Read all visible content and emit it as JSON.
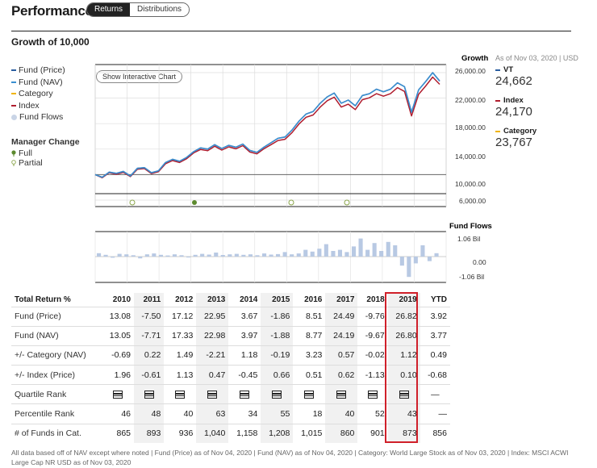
{
  "header": {
    "title": "Performance",
    "tabs": [
      {
        "label": "Returns",
        "active": true
      },
      {
        "label": "Distributions",
        "active": false
      }
    ]
  },
  "growth": {
    "title": "Growth of 10,000",
    "show_chart_button": "Show Interactive Chart",
    "growth_label": "Growth",
    "fund_flows_label": "Fund Flows",
    "legend": [
      {
        "label": "Fund (Price)",
        "color": "#2a5d9f",
        "shape": "line"
      },
      {
        "label": "Fund (NAV)",
        "color": "#3a8fd0",
        "shape": "line"
      },
      {
        "label": "Category",
        "color": "#f0b400",
        "shape": "line"
      },
      {
        "label": "Index",
        "color": "#b01d2e",
        "shape": "line"
      },
      {
        "label": "Fund Flows",
        "color": "#c9d4e6",
        "shape": "dot"
      }
    ],
    "manager_change": {
      "title": "Manager Change",
      "items": [
        {
          "label": "Full",
          "color": "#5c8a2e",
          "filled": true
        },
        {
          "label": "Partial",
          "color": "#8aa54a",
          "filled": false
        }
      ]
    },
    "side": {
      "as_of": "As of Nov 03, 2020 | USD",
      "items": [
        {
          "label": "VT",
          "value": "24,662",
          "color": "#2a5d9f"
        },
        {
          "label": "Index",
          "value": "24,170",
          "color": "#b01d2e"
        },
        {
          "label": "Category",
          "value": "23,767",
          "color": "#f0b400"
        }
      ]
    },
    "y_ticks": [
      "26,000.00",
      "22,000.00",
      "18,000.00",
      "14,000.00",
      "10,000.00",
      "6,000.00"
    ],
    "flow_ticks": [
      "1.06 Bil",
      "0.00",
      "-1.06 Bil"
    ]
  },
  "chart_data": {
    "type": "line",
    "y_ticks": [
      26000,
      22000,
      18000,
      14000,
      10000,
      6000
    ],
    "series": [
      {
        "name": "Fund (Price)",
        "color": "#2a5d9f",
        "values": [
          10000,
          9600,
          10400,
          10200,
          10500,
          9800,
          11000,
          11100,
          10300,
          10600,
          11900,
          12400,
          12100,
          12700,
          13600,
          14200,
          14000,
          14700,
          14100,
          14600,
          14300,
          14800,
          13800,
          13500,
          14300,
          15000,
          15700,
          15900,
          17000,
          18400,
          19500,
          19900,
          21200,
          22200,
          22800,
          21200,
          21700,
          20800,
          22400,
          22700,
          23400,
          23000,
          23400,
          24400,
          23800,
          19800,
          23300,
          24600,
          26000,
          24700
        ]
      },
      {
        "name": "Fund (NAV)",
        "color": "#3a8fd0",
        "values": [
          10000,
          9580,
          10380,
          10190,
          10480,
          9790,
          10980,
          11090,
          10290,
          10590,
          11880,
          12390,
          12090,
          12690,
          13590,
          14190,
          13990,
          14690,
          14090,
          14590,
          14290,
          14790,
          13790,
          13490,
          14290,
          14990,
          15690,
          15890,
          16990,
          18390,
          19490,
          19890,
          21190,
          22190,
          22790,
          21190,
          21690,
          20790,
          22390,
          22690,
          23390,
          22990,
          23390,
          24390,
          23790,
          19790,
          23290,
          24590,
          25990,
          24660
        ]
      },
      {
        "name": "Index",
        "color": "#b01d2e",
        "values": [
          10000,
          9500,
          10300,
          10050,
          10350,
          9700,
          10850,
          10950,
          10150,
          10450,
          11700,
          12200,
          11900,
          12500,
          13400,
          13950,
          13750,
          14450,
          13850,
          14350,
          14050,
          14550,
          13550,
          13250,
          14050,
          14700,
          15350,
          15550,
          16600,
          17950,
          19000,
          19350,
          20600,
          21600,
          22150,
          20600,
          21050,
          20200,
          21750,
          22050,
          22700,
          22300,
          22700,
          23650,
          23050,
          19200,
          22600,
          23900,
          25300,
          24170
        ]
      }
    ],
    "fund_flows": [
      0.15,
      0.08,
      -0.05,
      0.12,
      0.1,
      0.06,
      -0.08,
      0.1,
      0.14,
      0.08,
      0.05,
      0.1,
      0.06,
      -0.04,
      0.08,
      0.12,
      0.09,
      0.18,
      0.07,
      0.1,
      0.12,
      0.08,
      0.1,
      0.06,
      0.14,
      0.09,
      0.11,
      0.2,
      0.1,
      0.14,
      0.3,
      0.22,
      0.35,
      0.55,
      0.25,
      0.3,
      0.2,
      0.45,
      0.8,
      0.3,
      0.6,
      0.25,
      0.65,
      0.5,
      -0.4,
      -0.9,
      -0.3,
      0.5,
      -0.2,
      0.15
    ]
  },
  "returns_table": {
    "header_label": "Total Return %",
    "years": [
      "2010",
      "2011",
      "2012",
      "2013",
      "2014",
      "2015",
      "2016",
      "2017",
      "2018",
      "2019",
      "YTD"
    ],
    "rows": [
      {
        "label": "Fund (Price)",
        "values": [
          "13.08",
          "-7.50",
          "17.12",
          "22.95",
          "3.67",
          "-1.86",
          "8.51",
          "24.49",
          "-9.76",
          "26.82",
          "3.92"
        ]
      },
      {
        "label": "Fund (NAV)",
        "values": [
          "13.05",
          "-7.71",
          "17.33",
          "22.98",
          "3.97",
          "-1.88",
          "8.77",
          "24.19",
          "-9.67",
          "26.80",
          "3.77"
        ]
      },
      {
        "label": "+/- Category (NAV)",
        "values": [
          "-0.69",
          "0.22",
          "1.49",
          "-2.21",
          "1.18",
          "-0.19",
          "3.23",
          "0.57",
          "-0.02",
          "1.12",
          "0.49"
        ]
      },
      {
        "label": "+/- Index (Price)",
        "values": [
          "1.96",
          "-0.61",
          "1.13",
          "0.47",
          "-0.45",
          "0.66",
          "0.51",
          "0.62",
          "-1.13",
          "0.10",
          "-0.68"
        ]
      },
      {
        "label": "Quartile Rank",
        "values": [
          "",
          "",
          "",
          "",
          "",
          "",
          "",
          "",
          "",
          "",
          "—"
        ],
        "icon_row": true
      },
      {
        "label": "Percentile Rank",
        "values": [
          "46",
          "48",
          "40",
          "63",
          "34",
          "55",
          "18",
          "40",
          "52",
          "43",
          "—"
        ]
      },
      {
        "label": "# of Funds in Cat.",
        "values": [
          "865",
          "893",
          "936",
          "1,040",
          "1,158",
          "1,208",
          "1,015",
          "860",
          "901",
          "873",
          "856"
        ]
      }
    ]
  },
  "footnote": "All data based off of NAV except where noted | Fund (Price) as of Nov 04, 2020 | Fund (NAV) as of Nov 04, 2020 | Category: World Large Stock as of Nov 03, 2020 | Index: MSCI ACWI Large Cap NR USD as of Nov 03, 2020"
}
